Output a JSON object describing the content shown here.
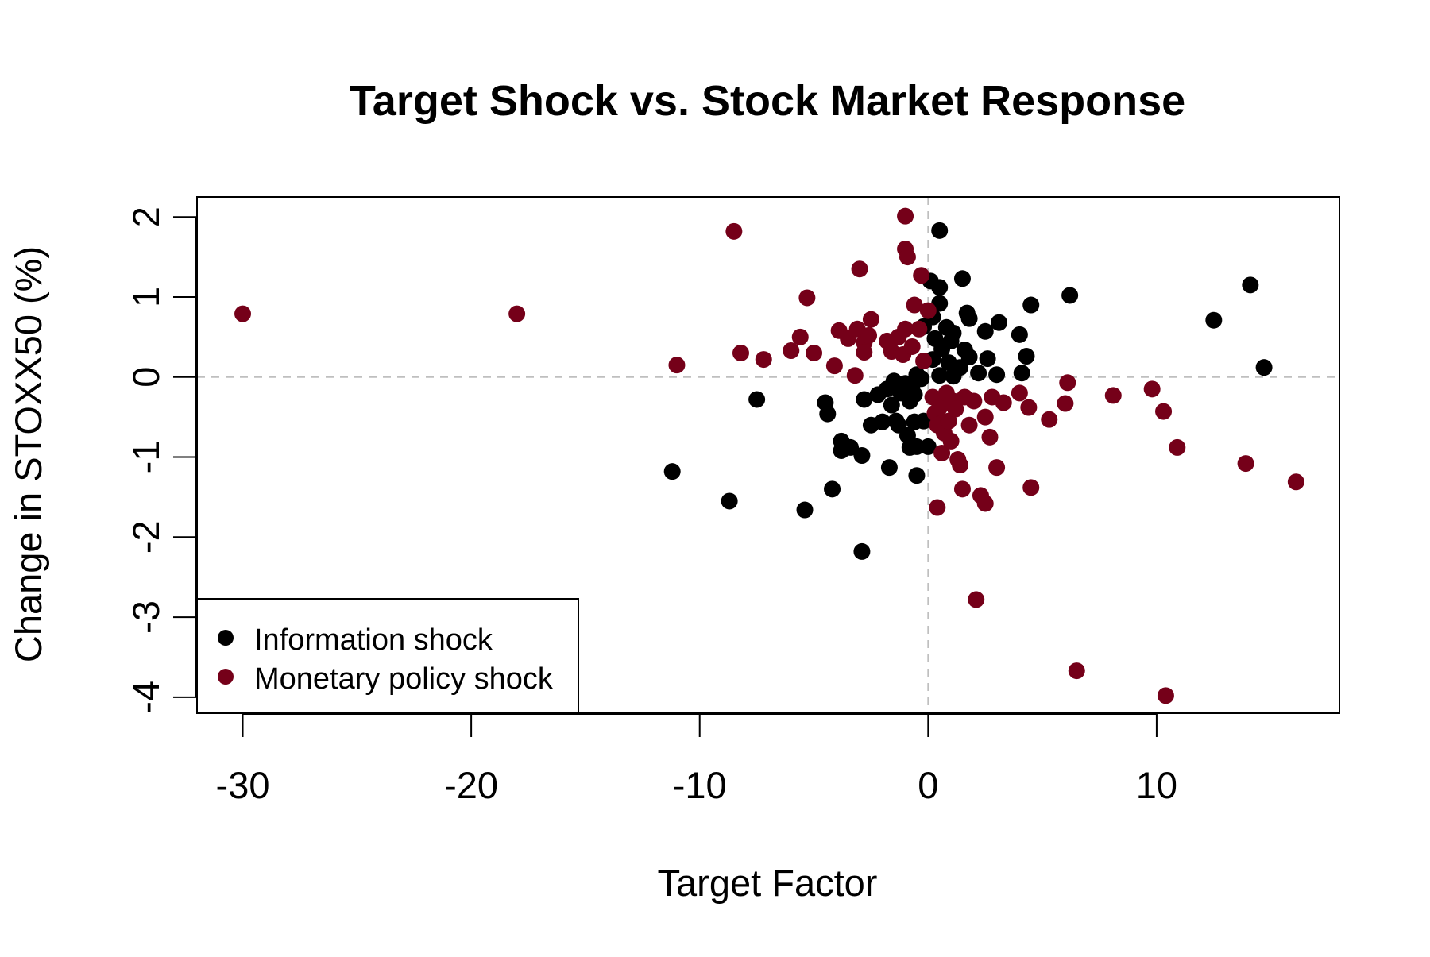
{
  "chart_data": {
    "type": "scatter",
    "title": "Target Shock vs. Stock Market Response",
    "xlabel": "Target Factor",
    "ylabel": "Change in STOXX50 (%)",
    "xlim": [
      -32,
      18
    ],
    "ylim": [
      -4.2,
      2.25
    ],
    "xticks": [
      -30,
      -20,
      -10,
      0,
      10
    ],
    "yticks": [
      -4,
      -3,
      -2,
      -1,
      0,
      1,
      2
    ],
    "grid": false,
    "reference_lines": {
      "x": 0,
      "y": 0,
      "style": "dashed",
      "color": "#bfbfbf"
    },
    "legend": {
      "placement": "bottom-left",
      "entries": [
        "Information shock",
        "Monetary policy shock"
      ]
    },
    "colors": {
      "Information shock": "#000000",
      "Monetary policy shock": "#750019"
    },
    "series": [
      {
        "name": "Information shock",
        "color": "#000000",
        "points": [
          [
            0.5,
            1.83
          ],
          [
            1.5,
            1.23
          ],
          [
            0.1,
            1.2
          ],
          [
            0.5,
            1.12
          ],
          [
            14.1,
            1.15
          ],
          [
            6.2,
            1.02
          ],
          [
            4.5,
            0.9
          ],
          [
            0.5,
            0.92
          ],
          [
            1.7,
            0.8
          ],
          [
            1.8,
            0.73
          ],
          [
            3.1,
            0.68
          ],
          [
            12.5,
            0.71
          ],
          [
            0.2,
            0.75
          ],
          [
            -0.2,
            0.63
          ],
          [
            0.8,
            0.62
          ],
          [
            1.1,
            0.55
          ],
          [
            2.5,
            0.57
          ],
          [
            4.0,
            0.53
          ],
          [
            0.3,
            0.48
          ],
          [
            1.0,
            0.45
          ],
          [
            0.6,
            0.35
          ],
          [
            1.6,
            0.34
          ],
          [
            1.8,
            0.25
          ],
          [
            2.6,
            0.23
          ],
          [
            4.3,
            0.26
          ],
          [
            0.2,
            0.22
          ],
          [
            0.9,
            0.18
          ],
          [
            1.4,
            0.12
          ],
          [
            14.7,
            0.12
          ],
          [
            2.2,
            0.05
          ],
          [
            3.0,
            0.03
          ],
          [
            4.1,
            0.05
          ],
          [
            0.5,
            0.02
          ],
          [
            1.1,
            0.01
          ],
          [
            -0.5,
            0.03
          ],
          [
            -1.5,
            -0.05
          ],
          [
            -1.0,
            -0.08
          ],
          [
            -0.7,
            -0.1
          ],
          [
            -0.3,
            -0.02
          ],
          [
            -1.8,
            -0.15
          ],
          [
            -1.2,
            -0.2
          ],
          [
            -0.6,
            -0.22
          ],
          [
            -2.2,
            -0.22
          ],
          [
            -1.6,
            -0.35
          ],
          [
            -0.8,
            -0.3
          ],
          [
            -2.8,
            -0.28
          ],
          [
            -4.5,
            -0.32
          ],
          [
            -7.5,
            -0.28
          ],
          [
            -4.4,
            -0.46
          ],
          [
            -1.4,
            -0.55
          ],
          [
            -2.0,
            -0.56
          ],
          [
            -2.5,
            -0.6
          ],
          [
            -0.6,
            -0.56
          ],
          [
            -1.3,
            -0.6
          ],
          [
            -0.9,
            -0.73
          ],
          [
            -0.2,
            -0.55
          ],
          [
            -3.8,
            -0.8
          ],
          [
            -3.4,
            -0.88
          ],
          [
            -3.8,
            -0.92
          ],
          [
            -2.9,
            -0.98
          ],
          [
            -0.8,
            -0.88
          ],
          [
            -0.5,
            -0.87
          ],
          [
            0.0,
            -0.87
          ],
          [
            -1.7,
            -1.13
          ],
          [
            -0.5,
            -1.23
          ],
          [
            -11.2,
            -1.18
          ],
          [
            -8.7,
            -1.55
          ],
          [
            -5.4,
            -1.66
          ],
          [
            -4.2,
            -1.4
          ],
          [
            -2.9,
            -2.18
          ]
        ]
      },
      {
        "name": "Monetary policy shock",
        "color": "#750019",
        "points": [
          [
            -30.0,
            0.79
          ],
          [
            -18.0,
            0.79
          ],
          [
            -11.0,
            0.15
          ],
          [
            -8.5,
            1.82
          ],
          [
            -8.2,
            0.3
          ],
          [
            -7.2,
            0.22
          ],
          [
            -6.0,
            0.33
          ],
          [
            -5.6,
            0.5
          ],
          [
            -5.3,
            0.99
          ],
          [
            -5.0,
            0.3
          ],
          [
            -4.1,
            0.14
          ],
          [
            -3.9,
            0.58
          ],
          [
            -3.5,
            0.48
          ],
          [
            -3.2,
            0.02
          ],
          [
            -3.1,
            0.6
          ],
          [
            -3.0,
            1.35
          ],
          [
            -2.8,
            0.43
          ],
          [
            -2.8,
            0.31
          ],
          [
            -2.6,
            0.52
          ],
          [
            -2.5,
            0.72
          ],
          [
            -1.8,
            0.45
          ],
          [
            -1.6,
            0.32
          ],
          [
            -1.3,
            0.5
          ],
          [
            -1.1,
            0.28
          ],
          [
            -1.0,
            0.6
          ],
          [
            -1.0,
            2.01
          ],
          [
            -1.0,
            1.6
          ],
          [
            -0.9,
            1.5
          ],
          [
            -0.7,
            0.38
          ],
          [
            -0.6,
            0.9
          ],
          [
            -0.4,
            0.6
          ],
          [
            -0.3,
            1.27
          ],
          [
            -0.2,
            0.2
          ],
          [
            0.0,
            0.83
          ],
          [
            0.2,
            -0.25
          ],
          [
            0.3,
            -0.45
          ],
          [
            0.4,
            -0.6
          ],
          [
            0.5,
            -0.38
          ],
          [
            0.6,
            -0.95
          ],
          [
            0.7,
            -0.7
          ],
          [
            0.8,
            -0.2
          ],
          [
            0.9,
            -0.55
          ],
          [
            1.0,
            -0.8
          ],
          [
            1.1,
            -0.3
          ],
          [
            1.2,
            -0.4
          ],
          [
            1.3,
            -1.03
          ],
          [
            1.4,
            -1.1
          ],
          [
            1.5,
            -1.4
          ],
          [
            1.6,
            -0.25
          ],
          [
            1.8,
            -0.6
          ],
          [
            2.0,
            -0.3
          ],
          [
            2.1,
            -2.78
          ],
          [
            2.3,
            -1.48
          ],
          [
            2.5,
            -1.58
          ],
          [
            2.5,
            -0.5
          ],
          [
            2.7,
            -0.75
          ],
          [
            2.8,
            -0.25
          ],
          [
            3.0,
            -1.13
          ],
          [
            3.3,
            -0.32
          ],
          [
            4.0,
            -0.2
          ],
          [
            4.4,
            -0.38
          ],
          [
            4.5,
            -1.38
          ],
          [
            5.3,
            -0.53
          ],
          [
            6.0,
            -0.33
          ],
          [
            6.1,
            -0.07
          ],
          [
            6.5,
            -3.67
          ],
          [
            8.1,
            -0.23
          ],
          [
            9.8,
            -0.15
          ],
          [
            10.3,
            -0.43
          ],
          [
            10.4,
            -3.98
          ],
          [
            10.9,
            -0.88
          ],
          [
            13.9,
            -1.08
          ],
          [
            16.1,
            -1.31
          ],
          [
            0.4,
            -1.63
          ]
        ]
      }
    ]
  }
}
